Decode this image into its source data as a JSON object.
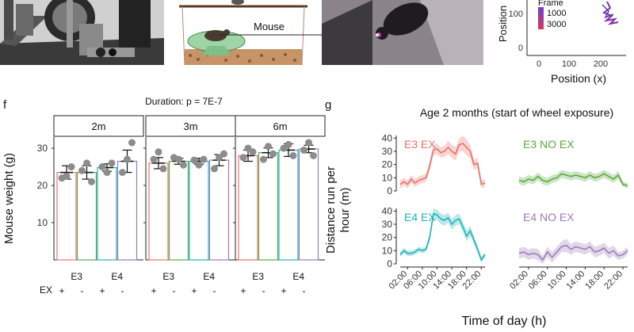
{
  "panel_labels": {
    "f": "f",
    "g": "g"
  },
  "top_row": {
    "mouse_label": "Mouse",
    "position_plot": {
      "legend_title": "Frame",
      "legend_values": [
        "1000",
        "3000"
      ],
      "y_axis_label": "Position",
      "y_ticks": [
        "100",
        "0"
      ],
      "x_ticks": [
        "0",
        "100",
        "200"
      ],
      "x_axis_label": "Position (x)"
    }
  },
  "colors": {
    "e3_ex": "#e8716a",
    "e3_noex": "#5ba843",
    "e4_ex": "#1fb3b6",
    "e4_noex": "#9b7bb7",
    "dot": "#8c8c8c"
  },
  "chart_data": [
    {
      "type": "bar",
      "title": "Duration: p = 7E-7",
      "ylabel": "Mouse weight (g)",
      "ylim": [
        0,
        33
      ],
      "y_ticks": [
        10,
        20,
        30
      ],
      "facets": [
        "2m",
        "3m",
        "6m"
      ],
      "groups": [
        "E3",
        "E3",
        "E4",
        "E4"
      ],
      "group_labels": [
        "E3",
        "E4"
      ],
      "ex_row_label": "EX",
      "ex": [
        "+",
        "-",
        "+",
        "-"
      ],
      "series_names": [
        "E3 EX",
        "E3 NO EX",
        "E4 EX",
        "E4 NO EX"
      ],
      "means": [
        [
          23.5,
          23.5,
          24.8,
          26.5
        ],
        [
          26.0,
          26.5,
          26.5,
          26.8
        ],
        [
          28.0,
          28.8,
          29.5,
          29.8
        ]
      ],
      "errors": [
        [
          1.8,
          1.8,
          1.0,
          3.0
        ],
        [
          1.5,
          0.8,
          0.8,
          1.5
        ],
        [
          1.5,
          1.3,
          1.7,
          1.0
        ]
      ],
      "points": [
        [
          [
            22.0,
            22.5,
            25.0
          ],
          [
            24.0,
            26.0,
            21.0
          ],
          [
            25.0,
            23.5,
            26.0
          ],
          [
            23.5,
            27.0,
            31.5
          ]
        ],
        [
          [
            27.0,
            29.0,
            24.5
          ],
          [
            27.5,
            27.0,
            25.5
          ],
          [
            26.8,
            25.5,
            27.0
          ],
          [
            24.5,
            27.5,
            28.5
          ]
        ],
        [
          [
            27.5,
            30.0,
            29.0
          ],
          [
            27.0,
            30.5,
            28.5
          ],
          [
            30.0,
            31.0,
            28.0
          ],
          [
            29.5,
            31.5,
            28.0
          ]
        ]
      ]
    },
    {
      "type": "line",
      "title": "Age 2 months (start of wheel exposure)",
      "ylabel": "Distance run per hour (m)",
      "xlabel": "Time of day (h)",
      "ylim": [
        0,
        42
      ],
      "y_ticks": [
        0,
        10,
        20,
        30,
        40
      ],
      "x_ticks": [
        "02:00",
        "06:00",
        "10:00",
        "14:00",
        "18:00",
        "22:00"
      ],
      "x_tick_hours": [
        2,
        6,
        10,
        14,
        18,
        22
      ],
      "x_range": [
        0,
        23
      ],
      "series": [
        {
          "name": "E3 EX",
          "values": [
            5,
            7,
            5,
            9,
            6,
            8,
            9,
            10,
            19,
            31,
            32,
            29,
            30,
            33,
            30,
            28,
            35,
            36,
            33,
            30,
            20,
            21,
            5,
            6
          ],
          "spread": [
            3,
            3,
            3,
            3,
            3,
            3,
            3,
            3,
            4,
            4,
            4,
            4,
            4,
            5,
            5,
            5,
            5,
            6,
            6,
            5,
            4,
            4,
            3,
            3
          ]
        },
        {
          "name": "E3 NO EX",
          "values": [
            8,
            7,
            9,
            8,
            11,
            8,
            7,
            9,
            10,
            13,
            12,
            11,
            12,
            11,
            10,
            12,
            10,
            11,
            13,
            11,
            9,
            12,
            5,
            4
          ],
          "spread": [
            3,
            3,
            3,
            3,
            3,
            3,
            3,
            3,
            3,
            3,
            3,
            3,
            3,
            3,
            3,
            3,
            3,
            3,
            3,
            3,
            3,
            3,
            2,
            2
          ]
        },
        {
          "name": "E4 EX",
          "values": [
            7,
            10,
            8,
            8,
            9,
            11,
            10,
            11,
            20,
            38,
            37,
            34,
            33,
            35,
            30,
            33,
            34,
            28,
            21,
            25,
            18,
            11,
            3,
            7
          ],
          "spread": [
            2,
            2,
            2,
            2,
            2,
            2,
            2,
            2,
            3,
            4,
            4,
            4,
            4,
            4,
            4,
            4,
            4,
            4,
            4,
            4,
            3,
            3,
            2,
            2
          ]
        },
        {
          "name": "E4 NO EX",
          "values": [
            8,
            9,
            7,
            8,
            7,
            3,
            9,
            5,
            9,
            13,
            14,
            11,
            13,
            12,
            11,
            13,
            9,
            10,
            12,
            8,
            10,
            6,
            7,
            10
          ],
          "spread": [
            4,
            4,
            4,
            4,
            4,
            3,
            4,
            4,
            4,
            4,
            5,
            4,
            4,
            4,
            4,
            4,
            4,
            4,
            4,
            4,
            4,
            3,
            3,
            3
          ]
        }
      ]
    }
  ]
}
